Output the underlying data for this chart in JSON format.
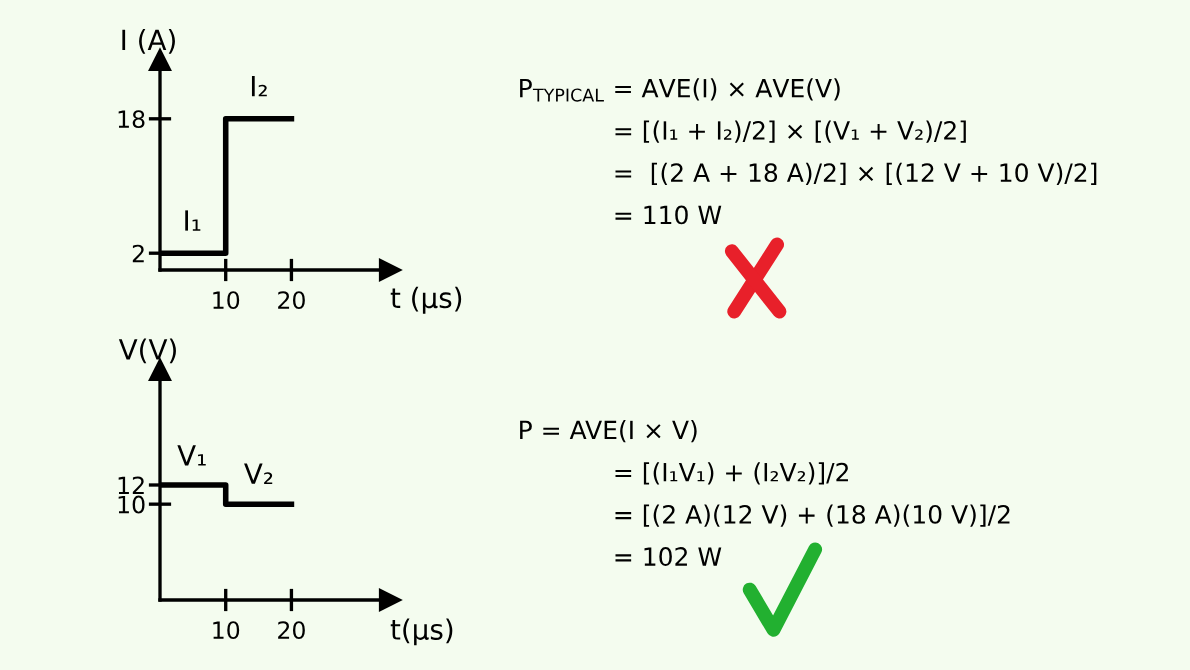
{
  "chart_data": [
    {
      "type": "step",
      "xlabel": "t (μs)",
      "ylabel": "I (A)",
      "x": [
        0,
        10,
        20
      ],
      "xlim": [
        0,
        35
      ],
      "ylim": [
        0,
        25
      ],
      "xticks": [
        10,
        20
      ],
      "yticks": [
        2,
        18
      ],
      "grid": false,
      "legend": false,
      "series": [
        {
          "color": "#000000",
          "values": [
            2,
            18,
            18
          ]
        }
      ],
      "annotations": [
        "I₁",
        "I₂",
        "P$_{TYPICAL}$ = AVE(I) × AVE(V)",
        "= [(I₁ + I₂)/2] × [(V₁ + V₂)/2]",
        "=  [(2 A + 18 A)/2] × [(12 V + 10 V)/2]",
        "= 110 W"
      ]
    },
    {
      "type": "step",
      "xlabel": "t(μs)",
      "ylabel": "V(V)",
      "x": [
        0,
        10,
        20
      ],
      "xlim": [
        0,
        35
      ],
      "ylim": [
        0,
        24
      ],
      "xticks": [
        10,
        20
      ],
      "yticks": [
        10,
        12
      ],
      "grid": false,
      "legend": false,
      "series": [
        {
          "color": "#000000",
          "values": [
            12,
            10,
            10
          ]
        }
      ],
      "annotations": [
        "V₁",
        "V₂",
        "P = AVE(I × V)",
        "= [(I₁V₁) + (I₂V₂)]/2",
        "= [(2 A)(12 V) + (18 A)(10 V)]/2",
        "= 102 W"
      ]
    }
  ]
}
